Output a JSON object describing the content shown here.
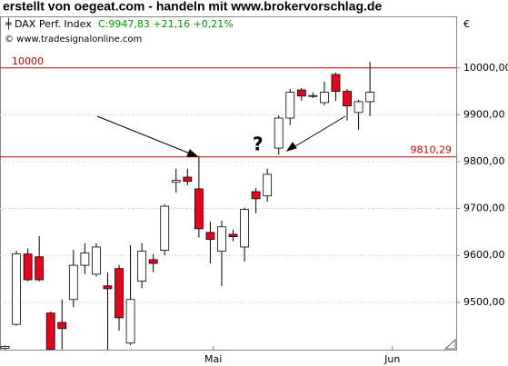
{
  "chart_data": {
    "type": "candlestick",
    "title": "erstellt von oegeat.com - handeln mit www.brokervorschlag.de",
    "series_name": "DAX Perf. Index",
    "quote": "C:9947,83 +21,16 +0,21%",
    "source": "© www.tradesignalonline.com",
    "currency": "€",
    "annotation": "?",
    "x": [
      0,
      1,
      2,
      3,
      4,
      5,
      6,
      7,
      8,
      9,
      10,
      11,
      12,
      13,
      14,
      15,
      16,
      17,
      18,
      19,
      20,
      21,
      22,
      23,
      24,
      25,
      26,
      27,
      28,
      29,
      30,
      31,
      32
    ],
    "open": [
      9402,
      9453,
      9603,
      9597,
      9477,
      9457,
      9506,
      9579,
      9560,
      9535,
      9572,
      9413,
      9545,
      9591,
      9611,
      9756,
      9767,
      9742,
      9649,
      9609,
      9645,
      9618,
      9736,
      9727,
      9829,
      9893,
      9953,
      9940,
      9926,
      9986,
      9950,
      9905,
      9928
    ],
    "high": [
      9408,
      9610,
      9615,
      9641,
      9480,
      9506,
      9612,
      9626,
      9626,
      9564,
      9580,
      9622,
      9626,
      9603,
      9709,
      9785,
      9785,
      9812,
      9672,
      9674,
      9655,
      9702,
      9744,
      9785,
      9899,
      9955,
      9957,
      9948,
      9971,
      9990,
      9955,
      9932,
      10013
    ],
    "low": [
      9399,
      9450,
      9545,
      9545,
      9380,
      9400,
      9490,
      9560,
      9555,
      9399,
      9440,
      9409,
      9530,
      9564,
      9600,
      9734,
      9750,
      9638,
      9583,
      9535,
      9630,
      9587,
      9690,
      9715,
      9815,
      9878,
      9930,
      9936,
      9920,
      9930,
      9888,
      9868,
      9897
    ],
    "close": [
      9406,
      9603,
      9548,
      9548,
      9400,
      9444,
      9579,
      9605,
      9618,
      9529,
      9467,
      9506,
      9609,
      9583,
      9705,
      9760,
      9758,
      9657,
      9634,
      9661,
      9640,
      9698,
      9721,
      9773,
      9893,
      9948,
      9940,
      9941,
      9948,
      9950,
      9919,
      9928,
      9948
    ],
    "up_color": "#ffffff",
    "down_color": "#e8001c",
    "wick_color": "#000000",
    "xlim": [
      -0.4,
      39.6
    ],
    "xticks": [
      {
        "value": 18.3,
        "label": "Mai"
      },
      {
        "value": 34,
        "label": "Jun"
      }
    ],
    "ylim": [
      9399,
      10110
    ],
    "yticks": [
      {
        "value": 9500,
        "label": "9500,00"
      },
      {
        "value": 9600,
        "label": "9600,00"
      },
      {
        "value": 9700,
        "label": "9700,00"
      },
      {
        "value": 9800,
        "label": "9800,00"
      },
      {
        "value": 9900,
        "label": "9900,00"
      },
      {
        "value": 10000,
        "label": "10000,00"
      }
    ],
    "hlines": [
      {
        "value": 10000,
        "label": "10000",
        "side": "left"
      },
      {
        "value": 9810.29,
        "label": "9810,29",
        "side": "right"
      }
    ],
    "hline_color": "#cc0000",
    "grid": true
  }
}
